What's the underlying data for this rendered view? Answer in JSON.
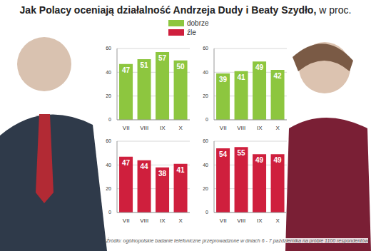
{
  "title": "Jak Polacy oceniają działalność Andrzeja Dudy i Beaty Szydło,",
  "subtitle": "w proc.",
  "annotations": [
    "Źródło: ogólnopolskie badanie telefoniczne przeprowadzone w dniach 6 - 7 października na próbie 1100 respondentów"
  ],
  "chart_data": [
    {
      "type": "bar",
      "categories": [
        "VII",
        "VIII",
        "IX",
        "X"
      ],
      "series": [
        {
          "name": "dobrze",
          "color": "#8dc63f",
          "values": [
            47,
            51,
            57,
            50
          ]
        }
      ],
      "ylim": [
        0,
        60
      ],
      "yticks": [
        0,
        20,
        40,
        60
      ],
      "grid": true,
      "data_labels": true
    },
    {
      "type": "bar",
      "categories": [
        "VII",
        "VIII",
        "IX",
        "X"
      ],
      "series": [
        {
          "name": "dobrze",
          "color": "#8dc63f",
          "values": [
            39,
            41,
            49,
            42
          ]
        }
      ],
      "ylim": [
        0,
        60
      ],
      "yticks": [
        0,
        20,
        40,
        60
      ],
      "grid": true,
      "data_labels": true
    },
    {
      "type": "bar",
      "categories": [
        "VII",
        "VIII",
        "IX",
        "X"
      ],
      "series": [
        {
          "name": "źle",
          "color": "#cf1f3d",
          "values": [
            47,
            44,
            38,
            41
          ]
        }
      ],
      "ylim": [
        0,
        60
      ],
      "yticks": [
        0,
        20,
        40,
        60
      ],
      "grid": true,
      "data_labels": true
    },
    {
      "type": "bar",
      "categories": [
        "VII",
        "VIII",
        "IX",
        "X"
      ],
      "series": [
        {
          "name": "źle",
          "color": "#cf1f3d",
          "values": [
            54,
            55,
            49,
            49
          ]
        }
      ],
      "ylim": [
        0,
        60
      ],
      "yticks": [
        0,
        20,
        40,
        60
      ],
      "grid": true,
      "data_labels": true
    }
  ]
}
